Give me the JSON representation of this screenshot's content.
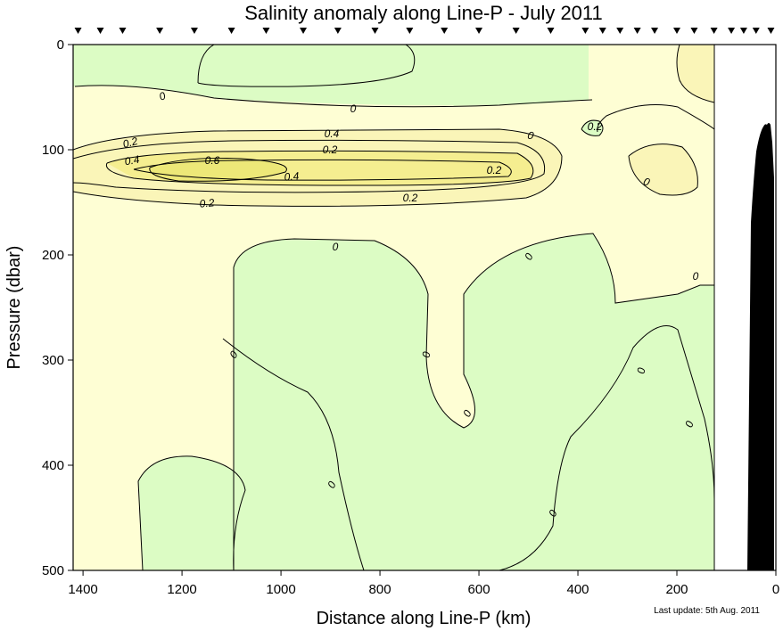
{
  "chart_data": {
    "type": "contour",
    "title": "Salinity anomaly along Line-P - July 2011",
    "xlabel": "Distance along Line-P (km)",
    "ylabel": "Pressure (dbar)",
    "xlim": [
      1420,
      0
    ],
    "ylim": [
      500,
      0
    ],
    "x_ticks": [
      1400,
      1200,
      1000,
      800,
      600,
      400,
      200,
      0
    ],
    "y_ticks": [
      0,
      100,
      200,
      300,
      400,
      500
    ],
    "station_markers_km": [
      1410,
      1365,
      1320,
      1245,
      1175,
      1100,
      1030,
      955,
      885,
      810,
      740,
      670,
      600,
      525,
      455,
      385,
      350,
      315,
      280,
      245,
      200,
      165,
      125,
      90,
      65,
      40,
      10
    ],
    "data_extent_km": [
      1420,
      125
    ],
    "contour_levels": [
      -0.2,
      0,
      0.2,
      0.4,
      0.6
    ],
    "contour_labels": [
      "0",
      "0",
      "0.2",
      "0.4",
      "0.6",
      "0.4",
      "0.2",
      "0.4",
      "0.2",
      "0.2",
      "0.2",
      "0",
      "0.2",
      "0",
      "0",
      "0",
      "0",
      "0",
      "0",
      "0",
      "0",
      "0",
      "0",
      "0"
    ],
    "colors": {
      "low_negative": "#b8f2a0",
      "negative": "#dcfcc4",
      "zero_band": "#fefed4",
      "pos_0_2": "#faf5b8",
      "pos_0_4": "#f5ee90",
      "pos_0_6": "#ede878",
      "bathymetry": "#000000"
    }
  },
  "footer": {
    "last_update": "Last update: 5th Aug. 2011"
  }
}
